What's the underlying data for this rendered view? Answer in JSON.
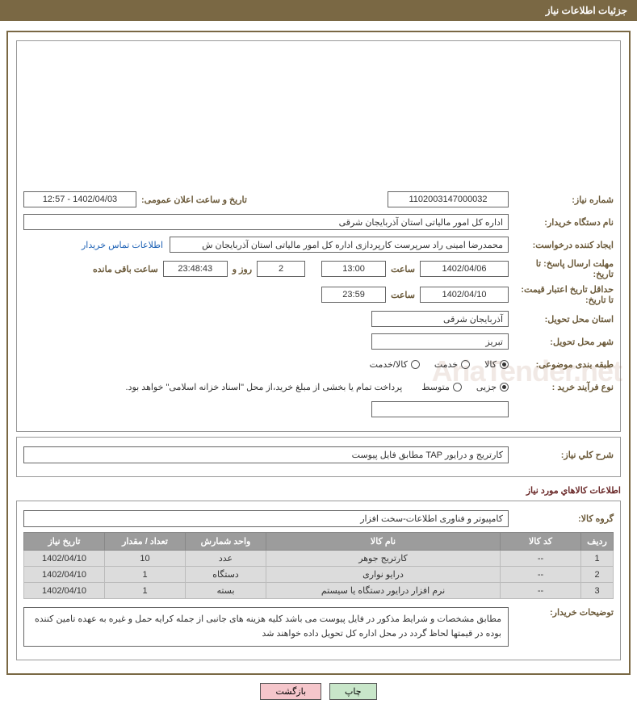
{
  "header": {
    "title": "جزئیات اطلاعات نیاز"
  },
  "fields": {
    "need_no_label": "شماره نیاز:",
    "need_no": "1102003147000032",
    "announce_label": "تاریخ و ساعت اعلان عمومی:",
    "announce_value": "1402/04/03 - 12:57",
    "buyer_label": "نام دستگاه خریدار:",
    "buyer_value": "اداره کل امور مالیاتی استان آذربایجان شرقی",
    "requester_label": "ایجاد کننده درخواست:",
    "requester_value": "محمدرضا امینی راد سرپرست کارپردازی اداره کل امور مالیاتی استان آذربایجان ش",
    "contact_link": "اطلاعات تماس خریدار",
    "deadline_label": "مهلت ارسال پاسخ: تا تاریخ:",
    "deadline_date": "1402/04/06",
    "time_label": "ساعت",
    "deadline_time": "13:00",
    "days_value": "2",
    "days_and": "روز و",
    "countdown": "23:48:43",
    "remaining_label": "ساعت باقی مانده",
    "min_valid_label": "حداقل تاریخ اعتبار قیمت: تا تاریخ:",
    "min_valid_date": "1402/04/10",
    "min_valid_time": "23:59",
    "province_label": "استان محل تحویل:",
    "province_value": "آذربایجان شرقی",
    "city_label": "شهر محل تحویل:",
    "city_value": "تبریز",
    "class_label": "طبقه بندی موضوعی:",
    "class_opts": {
      "o1": "کالا",
      "o2": "خدمت",
      "o3": "کالا/خدمت"
    },
    "process_label": "نوع فرآیند خرید :",
    "process_opts": {
      "o1": "جزیی",
      "o2": "متوسط"
    },
    "payment_note": "پرداخت تمام یا بخشی از مبلغ خرید،از محل \"اسناد خزانه اسلامی\" خواهد بود.",
    "nolabel": ""
  },
  "general": {
    "title_label": "شرح کلي نیاز:",
    "title_value": "کارتریج و درایور TAP مطابق فایل پیوست"
  },
  "goods": {
    "section_title": "اطلاعات کالاهاي مورد نیاز",
    "group_label": "گروه کالا:",
    "group_value": "کامپیوتر و فناوری اطلاعات-سخت افزار"
  },
  "table": {
    "headers": {
      "row": "ردیف",
      "code": "کد کالا",
      "name": "نام کالا",
      "unit": "واحد شمارش",
      "qty": "تعداد / مقدار",
      "date": "تاریخ نیاز"
    },
    "rows": [
      {
        "n": "1",
        "code": "--",
        "name": "کارتریج جوهر",
        "unit": "عدد",
        "qty": "10",
        "date": "1402/04/10"
      },
      {
        "n": "2",
        "code": "--",
        "name": "درایو نواری",
        "unit": "دستگاه",
        "qty": "1",
        "date": "1402/04/10"
      },
      {
        "n": "3",
        "code": "--",
        "name": "نرم افزار درایور دستگاه یا سیستم",
        "unit": "بسته",
        "qty": "1",
        "date": "1402/04/10"
      }
    ]
  },
  "buyer_notes": {
    "label": "توضیحات خریدار:",
    "text": "مطابق مشخصات و شرایط مذکور در فایل پیوست می باشد کلیه هزینه های جانبی از جمله کرایه حمل و غیره به عهده تامین کننده بوده در قیمتها لحاظ گردد در محل اداره کل تحویل داده خواهند شد"
  },
  "buttons": {
    "print": "چاپ",
    "back": "بازگشت"
  },
  "watermark": "AriaTender.net"
}
